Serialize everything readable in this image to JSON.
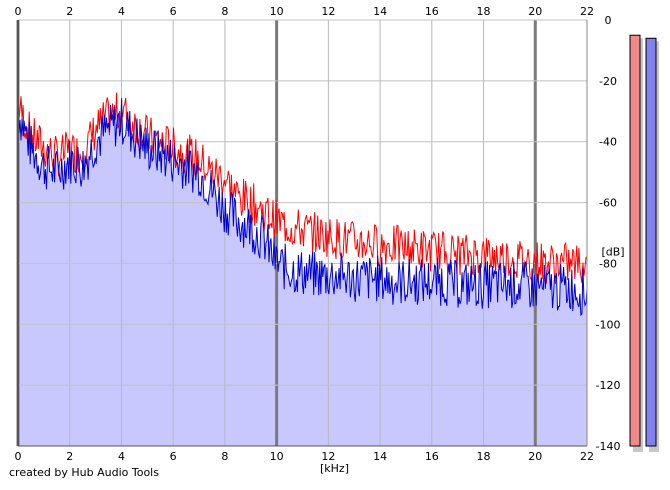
{
  "chart_data": {
    "type": "area",
    "xlabel": "[kHz]",
    "ylabel": "[dB]",
    "xlim": [
      0,
      22
    ],
    "ylim": [
      -140,
      0
    ],
    "x_ticks": [
      0,
      2,
      4,
      6,
      8,
      10,
      12,
      14,
      16,
      18,
      20,
      22
    ],
    "x_tick_labels": [
      "0",
      "2",
      "4",
      "6",
      "8",
      "10",
      "12",
      "14",
      "16",
      "18",
      "20",
      "22"
    ],
    "y_ticks": [
      0,
      -20,
      -40,
      -60,
      -80,
      -100,
      -120,
      -140
    ],
    "y_tick_labels": [
      "0",
      "-20",
      "-40",
      "-60",
      "-80",
      "-100",
      "-120",
      "-140"
    ],
    "grid": true,
    "series": [
      {
        "color": "#ff0000",
        "x": [
          0,
          0.5,
          1,
          1.5,
          2,
          2.5,
          3,
          3.5,
          4,
          4.5,
          5,
          5.5,
          6,
          6.5,
          7,
          7.5,
          8,
          8.5,
          9,
          9.5,
          10,
          10.5,
          11,
          11.5,
          12,
          12.5,
          13,
          13.5,
          14,
          14.5,
          15,
          15.5,
          16,
          16.5,
          17,
          17.5,
          18,
          18.5,
          19,
          19.5,
          20,
          20.5,
          21,
          21.5,
          22
        ],
        "y": [
          -28,
          -38,
          -42,
          -45,
          -43,
          -44,
          -36,
          -32,
          -30,
          -34,
          -38,
          -40,
          -42,
          -44,
          -46,
          -50,
          -52,
          -58,
          -60,
          -63,
          -66,
          -68,
          -69,
          -70,
          -71,
          -72,
          -73,
          -73,
          -74,
          -74,
          -75,
          -75,
          -76,
          -76,
          -77,
          -77,
          -77,
          -78,
          -78,
          -79,
          -79,
          -80,
          -80,
          -80,
          -80
        ]
      },
      {
        "color": "#0000cc",
        "fill": "#c8c8ff",
        "x": [
          0,
          0.5,
          1,
          1.5,
          2,
          2.5,
          3,
          3.5,
          4,
          4.5,
          5,
          5.5,
          6,
          6.5,
          7,
          7.5,
          8,
          8.5,
          9,
          9.5,
          10,
          10.5,
          11,
          11.5,
          12,
          12.5,
          13,
          13.5,
          14,
          14.5,
          15,
          15.5,
          16,
          16.5,
          17,
          17.5,
          18,
          18.5,
          19,
          19.5,
          20,
          20.5,
          21,
          21.5,
          22
        ],
        "y": [
          -30,
          -42,
          -48,
          -50,
          -46,
          -48,
          -40,
          -36,
          -33,
          -38,
          -42,
          -44,
          -46,
          -48,
          -50,
          -56,
          -62,
          -66,
          -68,
          -72,
          -80,
          -82,
          -83,
          -84,
          -84,
          -84,
          -85,
          -85,
          -85,
          -86,
          -86,
          -86,
          -86,
          -86,
          -87,
          -87,
          -87,
          -87,
          -87,
          -87,
          -88,
          -88,
          -88,
          -88,
          -90
        ]
      }
    ],
    "level_meters": [
      {
        "color": "#f08a8a",
        "level_db": -5
      },
      {
        "color": "#8080ee",
        "level_db": -6
      }
    ]
  },
  "credit": "created by Hub Audio Tools"
}
